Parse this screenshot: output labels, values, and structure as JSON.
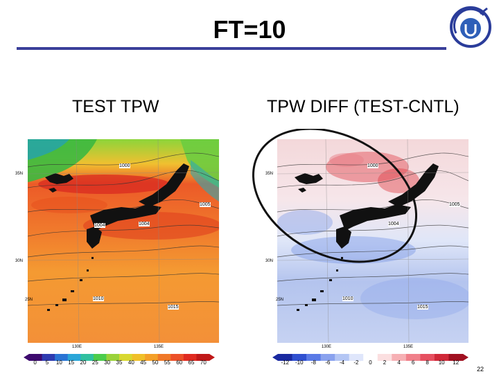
{
  "slide": {
    "title": "FT=10",
    "page_number": "22"
  },
  "left_panel": {
    "label": "TEST  TPW",
    "lat_labels": [
      "35N",
      "30N",
      "25N"
    ],
    "lon_labels": [
      "130E",
      "135E"
    ],
    "contour_labels": [
      "1000",
      "1004",
      "1004",
      "1005",
      "1010",
      "1015"
    ],
    "colorbar_ticks": [
      "0",
      "5",
      "10",
      "15",
      "20",
      "25",
      "30",
      "35",
      "40",
      "45",
      "50",
      "55",
      "60",
      "65",
      "70"
    ],
    "colors": [
      "#3d0a6e",
      "#2e3bb0",
      "#2a74d4",
      "#2aa6d8",
      "#30c0a0",
      "#4ccc4c",
      "#9ad23a",
      "#d8d830",
      "#f0c028",
      "#f4a028",
      "#f07828",
      "#ec5028",
      "#e02a20",
      "#c01818"
    ]
  },
  "right_panel": {
    "label": "TPW DIFF (TEST-CNTL)",
    "lat_labels": [
      "35N",
      "30N",
      "25N"
    ],
    "lon_labels": [
      "130E",
      "135E"
    ],
    "contour_labels": [
      "1000",
      "1004",
      "1005",
      "1010",
      "1015"
    ],
    "colorbar_ticks": [
      "-12",
      "-10",
      "-8",
      "-6",
      "-4",
      "-2",
      "0",
      "2",
      "4",
      "6",
      "8",
      "10",
      "12"
    ],
    "colors": [
      "#1a2aa0",
      "#3050d0",
      "#5a7ae6",
      "#8aa2ee",
      "#b4c6f4",
      "#dfe6fb",
      "#ffffff",
      "#fbdfe0",
      "#f6b0b4",
      "#f0808a",
      "#e65060",
      "#d02838",
      "#a01020"
    ]
  }
}
